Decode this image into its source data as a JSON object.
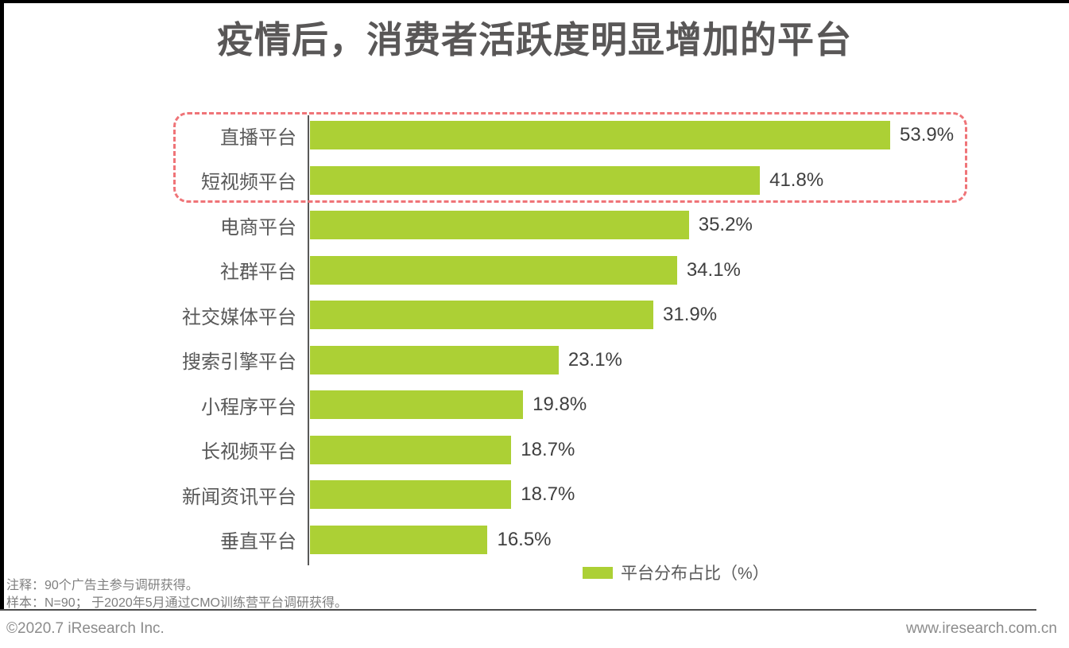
{
  "title": "疫情后，消费者活跃度明显增加的平台",
  "chart_data": {
    "type": "bar",
    "orientation": "horizontal",
    "title": "疫情后，消费者活跃度明显增加的平台",
    "categories": [
      "直播平台",
      "短视频平台",
      "电商平台",
      "社群平台",
      "社交媒体平台",
      "搜索引擎平台",
      "小程序平台",
      "长视频平台",
      "新闻资讯平台",
      "垂直平台"
    ],
    "values": [
      53.9,
      41.8,
      35.2,
      34.1,
      31.9,
      23.1,
      19.8,
      18.7,
      18.7,
      16.5
    ],
    "value_labels": [
      "53.9%",
      "41.8%",
      "35.2%",
      "34.1%",
      "31.9%",
      "23.1%",
      "19.8%",
      "18.7%",
      "18.7%",
      "16.5%"
    ],
    "series_name": "平台分布占比（%）",
    "xlim": [
      0,
      60
    ],
    "grid": false,
    "legend_position": "bottom",
    "bar_color": "#ACD035",
    "highlighted_categories": [
      "直播平台",
      "短视频平台"
    ],
    "highlight_box_color": "#EF7478",
    "axis_color": "#595959"
  },
  "legend": {
    "label": "平台分布占比（%）",
    "swatch_color": "#ACD035"
  },
  "notes": {
    "line1": "注释：90个广告主参与调研获得。",
    "line2": "样本：N=90； 于2020年5月通过CMO训练营平台调研获得。"
  },
  "footer": {
    "copyright": "©2020.7 iResearch Inc.",
    "website": "www.iresearch.com.cn"
  }
}
